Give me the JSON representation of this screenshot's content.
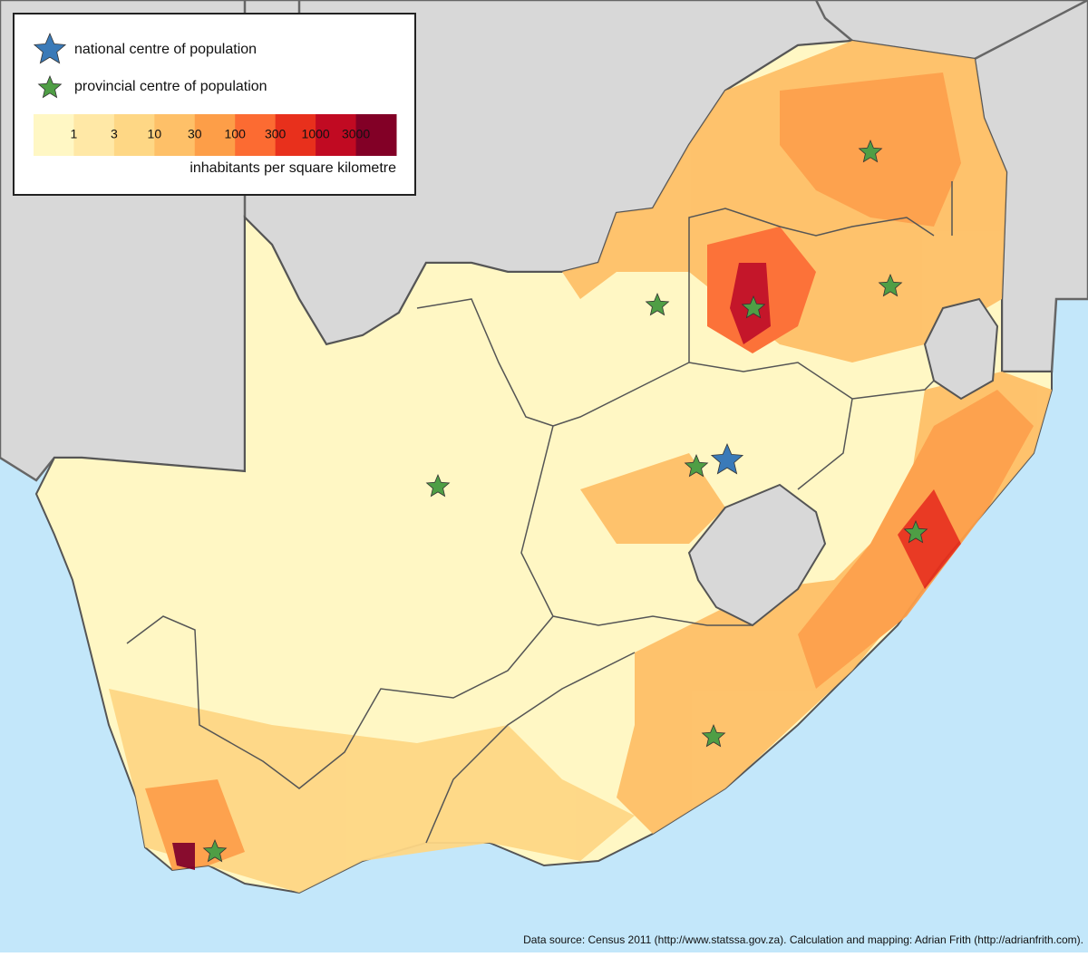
{
  "legend": {
    "items": [
      {
        "label": "national centre of population",
        "color": "#3a7ab8"
      },
      {
        "label": "provincial centre of population",
        "color": "#4f9e45"
      }
    ],
    "scale": {
      "labels": [
        "1",
        "3",
        "10",
        "30",
        "100",
        "300",
        "1000",
        "3000"
      ],
      "colors": [
        "#fff7c4",
        "#ffe8a6",
        "#fed785",
        "#fec068",
        "#fd9e48",
        "#fc6b32",
        "#e8301c",
        "#c10a22",
        "#820026"
      ],
      "caption": "inhabitants per square kilometre"
    }
  },
  "source": "Data source: Census 2011 (http://www.statssa.gov.za). Calculation and mapping: Adrian Frith (http://adrianfrith.com)."
}
